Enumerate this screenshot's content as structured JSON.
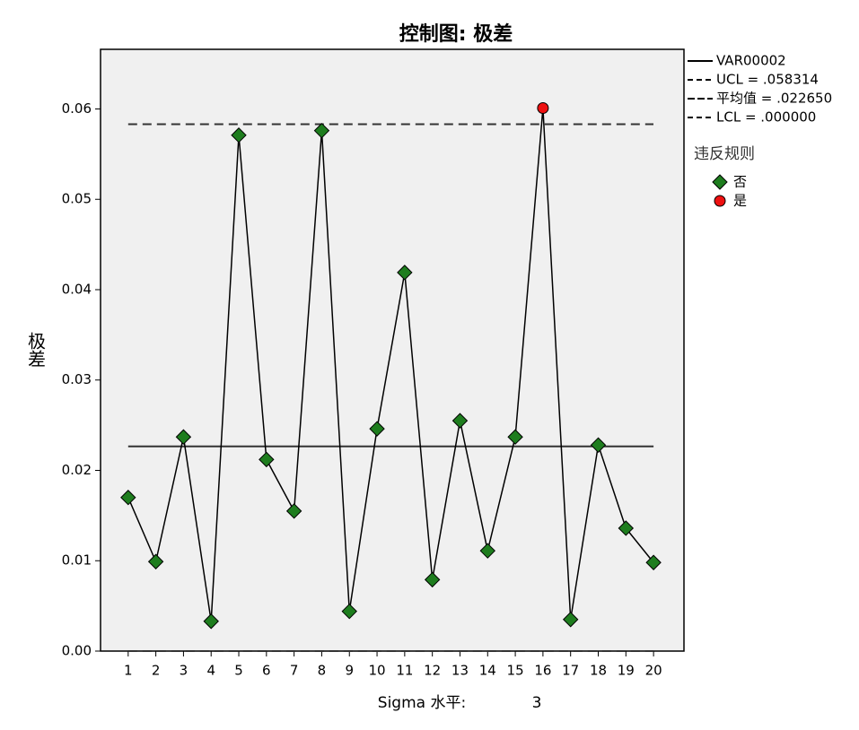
{
  "chart_data": {
    "type": "control",
    "title": "控制图: 极差",
    "y_label": "极差",
    "x": [
      1,
      2,
      3,
      4,
      5,
      6,
      7,
      8,
      9,
      10,
      11,
      12,
      13,
      14,
      15,
      16,
      17,
      18,
      19,
      20
    ],
    "series": [
      {
        "name": "VAR00002",
        "color": "#000000",
        "values": [
          0.017,
          0.0099,
          0.0237,
          0.0033,
          0.0571,
          0.0212,
          0.0155,
          0.0576,
          0.0044,
          0.0246,
          0.0419,
          0.0079,
          0.0255,
          0.0111,
          0.0237,
          0.0601,
          0.0035,
          0.0228,
          0.0136,
          0.0098
        ]
      }
    ],
    "point_group": [
      0,
      0,
      0,
      0,
      0,
      0,
      0,
      0,
      0,
      0,
      0,
      0,
      0,
      0,
      0,
      1,
      0,
      0,
      0,
      0
    ],
    "legend_groups_title": "违反规则",
    "legend_groups": [
      {
        "name": "否",
        "color": "#1e7d1e",
        "shape": "diamond"
      },
      {
        "name": "是",
        "color": "#ee1111",
        "shape": "circle"
      }
    ],
    "control_limits": [
      {
        "label": "UCL = .058314",
        "value": 0.058314,
        "style": "dashed"
      },
      {
        "label": "平均值 = .022650",
        "value": 0.02265,
        "style": "solid"
      },
      {
        "label": "LCL = .000000",
        "value": 0.0,
        "style": "dashed"
      }
    ],
    "xlim": [
      0,
      21.1
    ],
    "xticks": [
      1,
      2,
      3,
      4,
      5,
      6,
      7,
      8,
      9,
      10,
      11,
      12,
      13,
      14,
      15,
      16,
      17,
      18,
      19,
      20
    ],
    "ylim": [
      0,
      0.0666
    ],
    "yticks": [
      {
        "value": 0,
        "label": "0.00"
      },
      {
        "value": 0.01,
        "label": "0.01"
      },
      {
        "value": 0.02,
        "label": "0.02"
      },
      {
        "value": 0.03,
        "label": "0.03"
      },
      {
        "value": 0.04,
        "label": "0.04"
      },
      {
        "value": 0.05,
        "label": "0.05"
      },
      {
        "value": 0.06,
        "label": "0.06"
      }
    ],
    "sigma_label": "Sigma 水平:",
    "sigma_level": 3
  }
}
